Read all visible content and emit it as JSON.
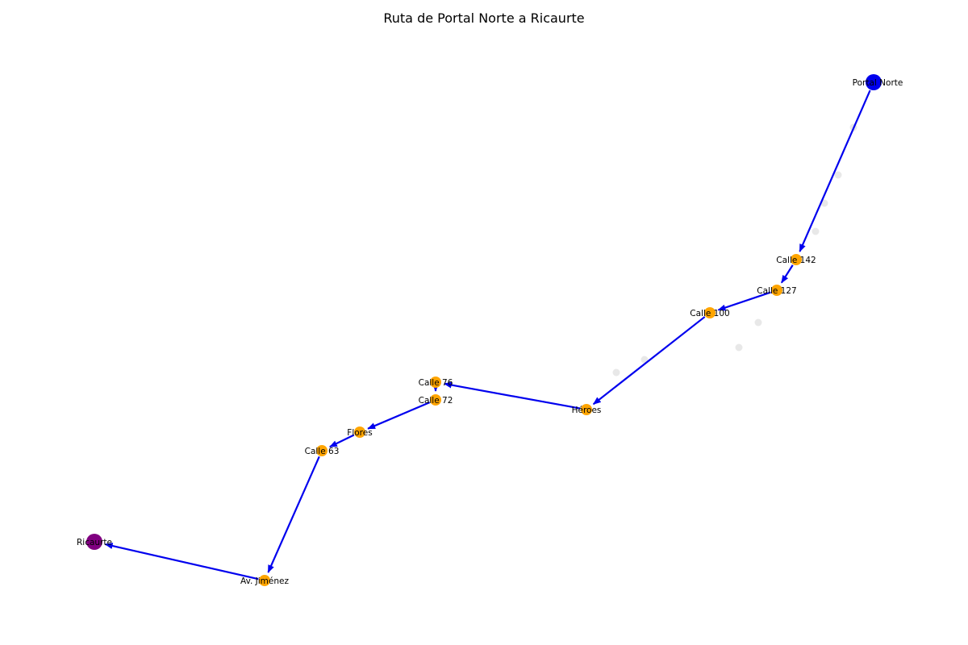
{
  "title": "Ruta de Portal Norte a Ricaurte",
  "colors": {
    "edge": "#0000ee",
    "start": "#0000ee",
    "end": "#800080",
    "intermediate": "#ffa500",
    "background_node": "#e8e8e8"
  },
  "route": {
    "start": "Portal Norte",
    "end": "Ricaurte",
    "stops": [
      "Portal Norte",
      "Calle 142",
      "Calle 127",
      "Calle 100",
      "Héroes",
      "Calle 76",
      "Calle 72",
      "Flores",
      "Calle 63",
      "Av. Jiménez",
      "Ricaurte"
    ]
  }
}
